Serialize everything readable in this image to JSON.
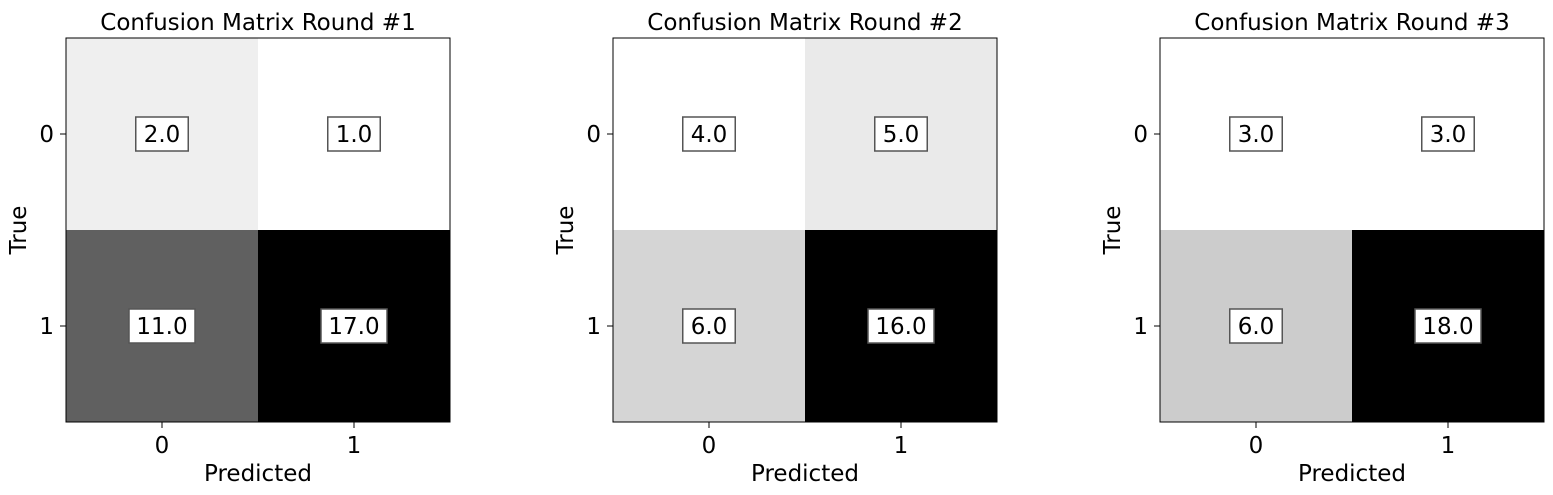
{
  "chart_data": [
    {
      "type": "heatmap",
      "title": "Confusion Matrix Round #1",
      "xlabel": "Predicted",
      "ylabel": "True",
      "x_categories": [
        "0",
        "1"
      ],
      "y_categories": [
        "0",
        "1"
      ],
      "values": [
        [
          2.0,
          1.0
        ],
        [
          11.0,
          17.0
        ]
      ],
      "cell_labels": [
        [
          "2.0",
          "1.0"
        ],
        [
          "11.0",
          "17.0"
        ]
      ],
      "colormap": "greys",
      "grid": false
    },
    {
      "type": "heatmap",
      "title": "Confusion Matrix Round #2",
      "xlabel": "Predicted",
      "ylabel": "True",
      "x_categories": [
        "0",
        "1"
      ],
      "y_categories": [
        "0",
        "1"
      ],
      "values": [
        [
          4.0,
          5.0
        ],
        [
          6.0,
          16.0
        ]
      ],
      "cell_labels": [
        [
          "4.0",
          "5.0"
        ],
        [
          "6.0",
          "16.0"
        ]
      ],
      "colormap": "greys",
      "grid": false
    },
    {
      "type": "heatmap",
      "title": "Confusion Matrix Round #3",
      "xlabel": "Predicted",
      "ylabel": "True",
      "x_categories": [
        "0",
        "1"
      ],
      "y_categories": [
        "0",
        "1"
      ],
      "values": [
        [
          3.0,
          3.0
        ],
        [
          6.0,
          18.0
        ]
      ],
      "cell_labels": [
        [
          "3.0",
          "3.0"
        ],
        [
          "6.0",
          "18.0"
        ]
      ],
      "colormap": "greys",
      "grid": false
    }
  ],
  "colors": {
    "low": "#ffffff",
    "high": "#000000",
    "frame": "#000000",
    "label_box_border": "#555555",
    "label_box_fill": "#ffffff"
  }
}
